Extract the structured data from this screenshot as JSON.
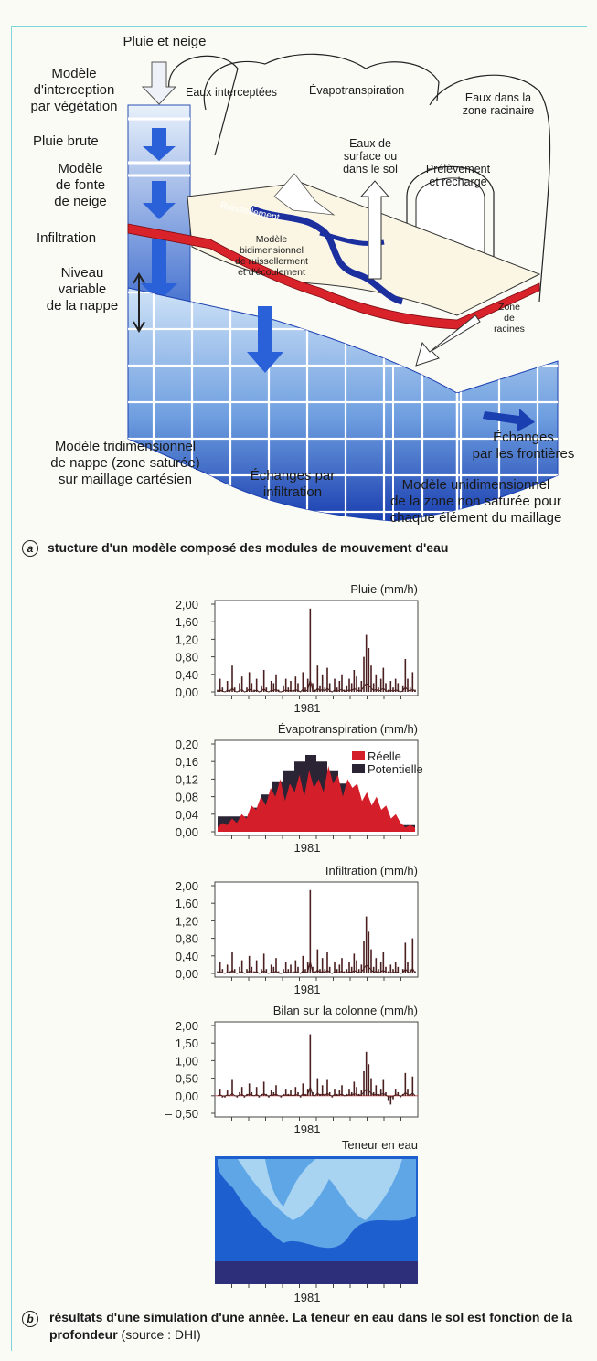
{
  "panel_a": {
    "labels": {
      "pluie_neige": "Pluie et neige",
      "interception": "Modèle\nd'interception\npar végétation",
      "pluie_brute": "Pluie brute",
      "fonte": "Modèle\nde fonte\nde neige",
      "infiltration": "Infiltration",
      "niveau": "Niveau\nvariable\nde la nappe",
      "eaux_interceptees": "Eaux interceptées",
      "evapotranspiration": "Évapotranspiration",
      "eaux_racinaire": "Eaux dans la\nzone racinaire",
      "eaux_surface": "Eaux de\nsurface ou\ndans le sol",
      "prelevement": "Prélèvement\net recharge",
      "ruissellement": "Ruissellement",
      "modele_bidim": "Modèle\nbidimensionnel\nde ruissellerment\net d'écoulement",
      "zone_racines": "Zone\nde\nracines",
      "modele_tridim": "Modèle tridimensionnel\nde nappe (zone saturée)\nsur maillage cartésien",
      "echanges_infiltration": "Échanges par\ninfiltration",
      "echanges_frontieres": "Échanges\npar les frontières",
      "modele_unidim": "Modèle unidimensionnel\nde la zone non saturée pour\nchaque élément du maillage"
    },
    "caption_letter": "a",
    "caption": "stucture d'un modèle composé des modules de mouvement d'eau"
  },
  "panel_b": {
    "caption_letter": "b",
    "caption_bold": "résultats d'une simulation d'une année. La teneur en eau dans le sol est fonction de la profondeur",
    "caption_source": "(source : DHI)"
  },
  "chart_data": [
    {
      "type": "line",
      "title": "Pluie (mm/h)",
      "xlabel": "1981",
      "yticks": [
        "2,00",
        "1,60",
        "1,20",
        "0,80",
        "0,40",
        "0,00"
      ],
      "ylim": [
        0,
        2.0
      ],
      "color": "#4a1f1f",
      "series": [
        {
          "values": [
            0.05,
            0.3,
            0.1,
            0,
            0.25,
            0.05,
            0.6,
            0.1,
            0,
            0.2,
            0.35,
            0,
            0.1,
            0.45,
            0.2,
            0.05,
            0.3,
            0,
            0.15,
            0.5,
            0.1,
            0,
            0.25,
            0.2,
            0.4,
            0.05,
            0,
            0.15,
            0.3,
            0.1,
            0.25,
            0.05,
            0.35,
            0.2,
            0,
            0.45,
            0.1,
            0.3,
            1.9,
            0.2,
            0.05,
            0.6,
            0.15,
            0.4,
            0.1,
            0.55,
            0.2,
            0,
            0.3,
            0.1,
            0.25,
            0.4,
            0.05,
            0.15,
            0.3,
            0.2,
            0.5,
            0.35,
            0.1,
            0.25,
            0.8,
            1.3,
            1.0,
            0.6,
            0.2,
            0.4,
            0.1,
            0.3,
            0.55,
            0.2,
            0.05,
            0.25,
            0.1,
            0.3,
            0.2,
            0,
            0.15,
            0.75,
            0.3,
            0.1,
            0.45,
            0.05
          ]
        }
      ]
    },
    {
      "type": "area",
      "title": "Évapotranspiration (mm/h)",
      "xlabel": "1981",
      "yticks": [
        "0,20",
        "0,16",
        "0,12",
        "0,08",
        "0,04",
        "0,00"
      ],
      "ylim": [
        0,
        0.2
      ],
      "legend": "top-right",
      "series": [
        {
          "name": "Réelle",
          "color": "#d41e2a",
          "values": [
            0.01,
            0.02,
            0.015,
            0.03,
            0.02,
            0.04,
            0.03,
            0.06,
            0.05,
            0.08,
            0.06,
            0.1,
            0.08,
            0.12,
            0.07,
            0.11,
            0.09,
            0.13,
            0.08,
            0.14,
            0.1,
            0.12,
            0.09,
            0.15,
            0.11,
            0.13,
            0.08,
            0.12,
            0.1,
            0.11,
            0.07,
            0.09,
            0.06,
            0.08,
            0.05,
            0.06,
            0.03,
            0.04,
            0.02,
            0.01,
            0.015,
            0.01
          ]
        },
        {
          "name": "Potentielle",
          "color": "#2b2434",
          "steps": [
            0.035,
            0.035,
            0.035,
            0.055,
            0.085,
            0.115,
            0.14,
            0.16,
            0.175,
            0.16,
            0.14,
            0.11,
            0.075,
            0.045,
            0.02,
            0.01,
            0.015,
            0.015
          ]
        }
      ]
    },
    {
      "type": "line",
      "title": "Infiltration (mm/h)",
      "xlabel": "1981",
      "yticks": [
        "2,00",
        "1,60",
        "1,20",
        "0,80",
        "0,40",
        "0,00"
      ],
      "ylim": [
        0,
        2.0
      ],
      "color": "#4a1f1f",
      "series": [
        {
          "values": [
            0.05,
            0.25,
            0.1,
            0,
            0.2,
            0.05,
            0.5,
            0.1,
            0,
            0.15,
            0.3,
            0,
            0.1,
            0.4,
            0.15,
            0.05,
            0.3,
            0,
            0.1,
            0.45,
            0.1,
            0,
            0.2,
            0.15,
            0.35,
            0.05,
            0,
            0.1,
            0.25,
            0.1,
            0.2,
            0.05,
            0.3,
            0.15,
            0,
            0.4,
            0.1,
            0.25,
            1.9,
            0.15,
            0.05,
            0.55,
            0.1,
            0.35,
            0.1,
            0.5,
            0.15,
            0,
            0.25,
            0.1,
            0.2,
            0.35,
            0.05,
            0.1,
            0.25,
            0.15,
            0.45,
            0.3,
            0.1,
            0.2,
            0.75,
            1.3,
            0.95,
            0.55,
            0.15,
            0.35,
            0.1,
            0.25,
            0.5,
            0.15,
            0.05,
            0.2,
            0.1,
            0.25,
            0.15,
            0,
            0.1,
            0.7,
            0.25,
            0.1,
            0.8,
            0.05
          ]
        }
      ]
    },
    {
      "type": "line",
      "title": "Bilan sur la colonne (mm/h)",
      "xlabel": "1981",
      "yticks": [
        "2,00",
        "1,50",
        "1,00",
        "0,50",
        "0,00",
        "– 0,50"
      ],
      "ylim": [
        -0.5,
        2.0
      ],
      "color": "#4a1f1f",
      "series": [
        {
          "values": [
            0,
            0.2,
            -0.05,
            -0.05,
            0.15,
            0,
            0.45,
            0,
            -0.05,
            0.1,
            0.25,
            -0.05,
            0.05,
            0.35,
            0.1,
            0,
            0.25,
            -0.05,
            0.05,
            0.4,
            0.05,
            -0.05,
            0.15,
            0.1,
            0.3,
            0,
            -0.05,
            0.05,
            0.2,
            0.05,
            0.15,
            0,
            0.25,
            0.1,
            -0.05,
            0.35,
            0.05,
            0.2,
            1.75,
            0.1,
            0,
            0.5,
            0.05,
            0.3,
            0.05,
            0.45,
            0.1,
            -0.05,
            0.2,
            0.05,
            0.15,
            0.3,
            0,
            0.05,
            0.2,
            0.1,
            0.4,
            0.25,
            0.05,
            0.15,
            0.7,
            1.25,
            0.9,
            0.5,
            0.1,
            0.3,
            0.05,
            0.2,
            0.45,
            0.1,
            -0.15,
            -0.25,
            -0.1,
            0.2,
            0.1,
            -0.05,
            0.05,
            0.65,
            0.2,
            0.05,
            0.55,
            0
          ]
        }
      ]
    },
    {
      "type": "heatmap",
      "title": "Teneur en eau",
      "xlabel": "1981",
      "colors": [
        "#1e5fd0",
        "#5ea6e6",
        "#a8d4f2",
        "#2d2f7a"
      ]
    }
  ]
}
